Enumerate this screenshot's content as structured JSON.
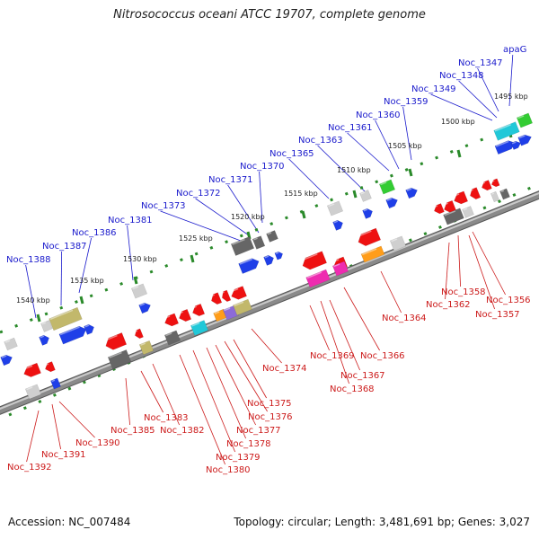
{
  "title": "Nitrosococcus oceani ATCC 19707, complete genome",
  "footer": {
    "accession": "Accession: NC_007484",
    "summary": "Topology: circular; Length: 3,481,691 bp; Genes: 3,027"
  },
  "colors": {
    "label_forward": "#1a1acc",
    "label_reverse": "#cc1a1a",
    "forward_strand": "#1f3fe8",
    "reverse_strand": "#ee1111",
    "backbone": "#8a8a8a",
    "ticks": "#2a8a2a",
    "cds_grey": "#666666",
    "cds_light": "#cfcfcf",
    "cds_khaki": "#c2b86b",
    "cds_cyan": "#21c8d8",
    "cds_green": "#33cc33",
    "cds_magenta": "#ee2bb0",
    "cds_orange": "#ff9d1a",
    "cds_purple": "#8c6bd8"
  },
  "scale_labels": [
    "1540 kbp",
    "1535 kbp",
    "1530 kbp",
    "1525 kbp",
    "1520 kbp",
    "1515 kbp",
    "1510 kbp",
    "1505 kbp",
    "1500 kbp",
    "1495 kbp"
  ],
  "forward_labels": [
    "Noc_1388",
    "Noc_1387",
    "Noc_1386",
    "Noc_1381",
    "Noc_1373",
    "Noc_1372",
    "Noc_1371",
    "Noc_1370",
    "Noc_1365",
    "Noc_1363",
    "Noc_1361",
    "Noc_1360",
    "Noc_1359",
    "Noc_1349",
    "Noc_1348",
    "Noc_1347",
    "apaG"
  ],
  "reverse_labels": [
    "Noc_1392",
    "Noc_1391",
    "Noc_1390",
    "Noc_1385",
    "Noc_1383",
    "Noc_1382",
    "Noc_1380",
    "Noc_1379",
    "Noc_1378",
    "Noc_1377",
    "Noc_1376",
    "Noc_1375",
    "Noc_1374",
    "Noc_1369",
    "Noc_1368",
    "Noc_1367",
    "Noc_1366",
    "Noc_1364",
    "Noc_1362",
    "Noc_1358",
    "Noc_1357",
    "Noc_1356"
  ]
}
